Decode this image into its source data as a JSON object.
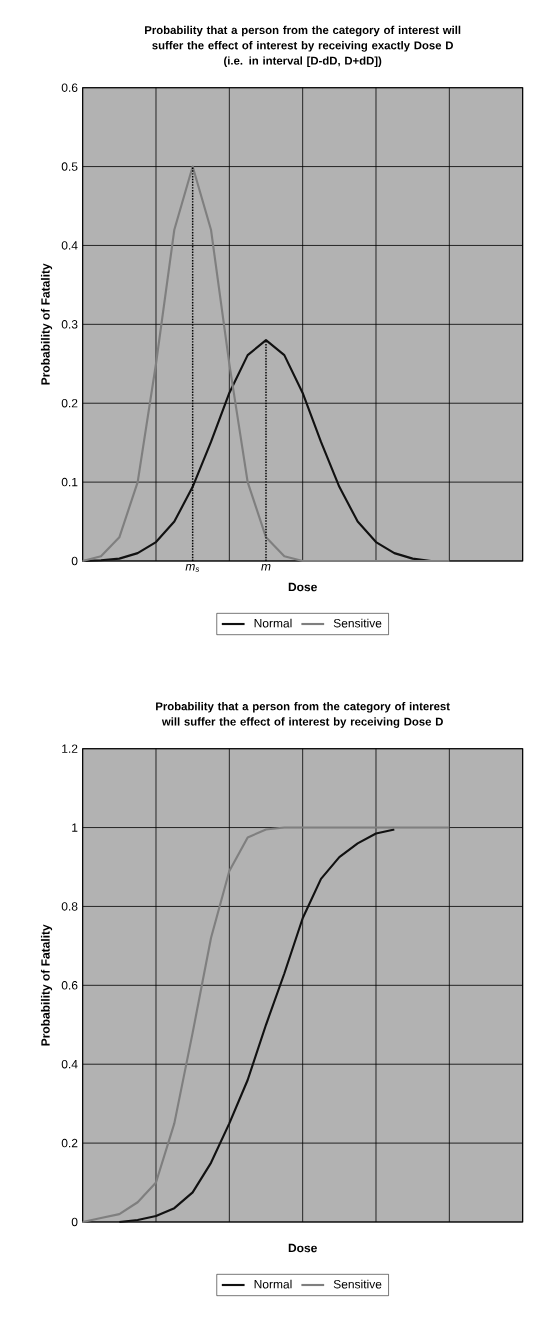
{
  "chart_data": [
    {
      "type": "line",
      "title": "Probability that a person from the category of interest will suffer the effect of interest by receiving exactly Dose D",
      "subtitle": "(i.e. in interval [D-dD, D+dD])",
      "xlabel": "Dose",
      "ylabel": "Probability of Fatality",
      "categories": [
        null,
        null,
        null,
        null,
        null,
        null,
        null,
        null,
        null,
        null,
        null,
        null,
        null,
        null,
        null,
        null,
        null,
        null,
        null,
        null,
        null,
        null,
        null,
        null,
        null
      ],
      "series": [
        {
          "name": "Normal",
          "color": "#111111",
          "values": [
            0,
            0.001,
            0.003,
            0.01,
            0.024,
            0.05,
            0.094,
            0.151,
            0.213,
            0.261,
            0.28,
            0.261,
            0.213,
            0.151,
            0.094,
            0.05,
            0.024,
            0.01,
            0.003,
            0,
            null,
            null,
            null,
            null,
            null
          ]
        },
        {
          "name": "Sensitive",
          "color": "#7f7f7f",
          "values": [
            0,
            0.006,
            0.03,
            0.1,
            0.25,
            0.42,
            0.5,
            0.42,
            0.25,
            0.1,
            0.03,
            0.006,
            0,
            0,
            0,
            0,
            0,
            0,
            0,
            0,
            0,
            null,
            null,
            null,
            null
          ]
        }
      ],
      "annotations": [
        "m$_{s}$",
        "m"
      ],
      "ylim": [
        0,
        0.6
      ],
      "yticks": [
        0,
        0.1,
        0.2,
        0.3,
        0.4,
        0.5,
        0.6
      ],
      "tick_labels": "y",
      "grid": true,
      "legend": "bottom",
      "marker": "none",
      "line_style": "solid"
    },
    {
      "type": "line",
      "title": "Probability that a person from the category of interest will suffer the effect of interest by receiving Dose D",
      "xlabel": "Dose",
      "ylabel": "Probability of Fatality",
      "categories": [
        null,
        null,
        null,
        null,
        null,
        null,
        null,
        null,
        null,
        null,
        null,
        null,
        null,
        null,
        null,
        null,
        null,
        null,
        null,
        null,
        null,
        null,
        null,
        null,
        null
      ],
      "series": [
        {
          "name": "Normal",
          "color": "#111111",
          "values": [
            null,
            null,
            0,
            0.005,
            0.015,
            0.035,
            0.075,
            0.15,
            0.25,
            0.36,
            0.5,
            0.63,
            0.77,
            0.87,
            0.925,
            0.96,
            0.985,
            0.995,
            null,
            null,
            null,
            null,
            null,
            null,
            null
          ]
        },
        {
          "name": "Sensitive",
          "color": "#7f7f7f",
          "values": [
            0,
            0.01,
            0.02,
            0.05,
            0.1,
            0.25,
            0.48,
            0.72,
            0.89,
            0.975,
            0.995,
            1,
            1,
            1,
            1,
            1,
            1,
            1,
            1,
            1,
            1,
            null,
            null,
            null,
            null
          ]
        }
      ],
      "ylim": [
        0,
        1.2
      ],
      "yticks": [
        0,
        0.2,
        0.4,
        0.6,
        0.8,
        1,
        1.2
      ],
      "tick_labels": "y",
      "grid": true,
      "legend": "bottom",
      "marker": "none",
      "line_style": "solid"
    }
  ]
}
